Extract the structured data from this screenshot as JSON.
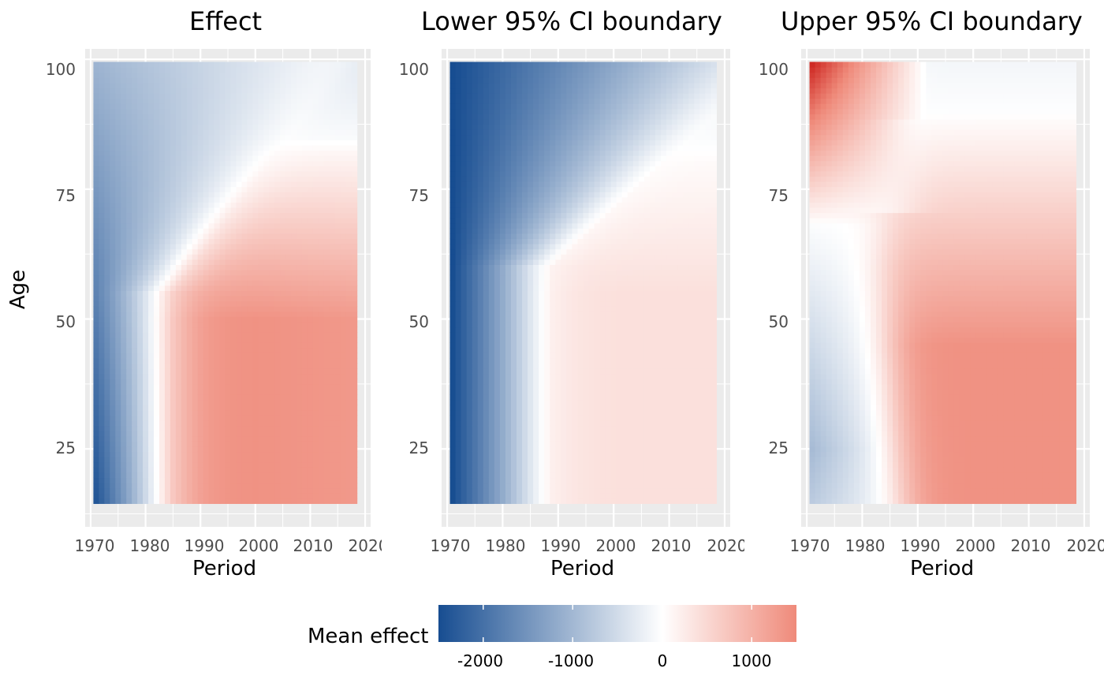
{
  "chart_data": [
    {
      "type": "heatmap",
      "title": "Effect",
      "xlabel": "Period",
      "ylabel": "Age",
      "x_ticks": [
        "1970",
        "1980",
        "1990",
        "2000",
        "2010",
        "2020"
      ],
      "y_ticks": [
        "25",
        "50",
        "75",
        "100"
      ],
      "xlim": [
        1969,
        2021
      ],
      "ylim": [
        10,
        102
      ],
      "data_x_range": [
        1971,
        2018
      ],
      "data_y_range": [
        15,
        99
      ],
      "grid": true,
      "value_samples": [
        {
          "period": 1971,
          "age": 15,
          "value": -2400
        },
        {
          "period": 1980,
          "age": 15,
          "value": -900
        },
        {
          "period": 1986,
          "age": 15,
          "value": 0
        },
        {
          "period": 2000,
          "age": 25,
          "value": 1400
        },
        {
          "period": 2018,
          "age": 25,
          "value": 1350
        },
        {
          "period": 1971,
          "age": 99,
          "value": -1000
        },
        {
          "period": 2000,
          "age": 80,
          "value": 0
        },
        {
          "period": 2018,
          "age": 70,
          "value": 400
        },
        {
          "period": 2018,
          "age": 99,
          "value": -400
        }
      ]
    },
    {
      "type": "heatmap",
      "title": "Lower 95% CI boundary",
      "xlabel": "Period",
      "ylabel": "",
      "x_ticks": [
        "1970",
        "1980",
        "1990",
        "2000",
        "2010",
        "2020"
      ],
      "y_ticks": [
        "25",
        "50",
        "75",
        "100"
      ],
      "xlim": [
        1969,
        2021
      ],
      "ylim": [
        10,
        102
      ],
      "data_x_range": [
        1971,
        2018
      ],
      "data_y_range": [
        15,
        99
      ],
      "grid": true,
      "value_samples": [
        {
          "period": 1971,
          "age": 99,
          "value": -2500
        },
        {
          "period": 1971,
          "age": 15,
          "value": -2300
        },
        {
          "period": 1989,
          "age": 15,
          "value": 0
        },
        {
          "period": 2000,
          "age": 40,
          "value": 400
        },
        {
          "period": 2018,
          "age": 40,
          "value": 380
        },
        {
          "period": 2018,
          "age": 99,
          "value": -200
        }
      ]
    },
    {
      "type": "heatmap",
      "title": "Upper 95% CI boundary",
      "xlabel": "Period",
      "ylabel": "",
      "x_ticks": [
        "1970",
        "1980",
        "1990",
        "2000",
        "2010",
        "2020"
      ],
      "y_ticks": [
        "25",
        "50",
        "75",
        "100"
      ],
      "xlim": [
        1969,
        2021
      ],
      "ylim": [
        10,
        102
      ],
      "data_x_range": [
        1971,
        2018
      ],
      "data_y_range": [
        15,
        99
      ],
      "grid": true,
      "value_samples": [
        {
          "period": 1971,
          "age": 99,
          "value": 2300
        },
        {
          "period": 1980,
          "age": 85,
          "value": 600
        },
        {
          "period": 1971,
          "age": 68,
          "value": 0
        },
        {
          "period": 1971,
          "age": 25,
          "value": -900
        },
        {
          "period": 1983,
          "age": 15,
          "value": 0
        },
        {
          "period": 2000,
          "age": 25,
          "value": 1400
        },
        {
          "period": 2018,
          "age": 50,
          "value": 800
        },
        {
          "period": 2010,
          "age": 99,
          "value": -100
        }
      ]
    }
  ],
  "legend": {
    "title": "Mean effect",
    "ticks": [
      "-2000",
      "-1000",
      "0",
      "1000"
    ],
    "tick_values": [
      -2000,
      -1000,
      0,
      1000
    ],
    "range": [
      -2500,
      1500
    ],
    "low_color": "#174d91",
    "mid_color": "#ffffff",
    "high_color": "#ef8a7a"
  },
  "colors": {
    "panel_background": "#ebebeb",
    "grid": "#ffffff",
    "deep_red": "#cf2b25"
  }
}
